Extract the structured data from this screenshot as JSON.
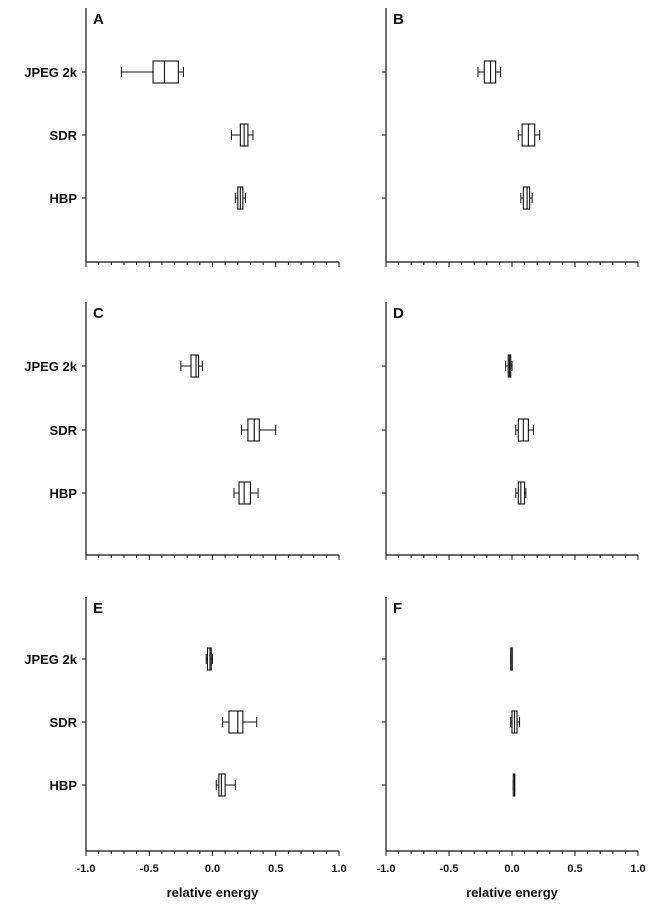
{
  "chart_data": [
    {
      "panel": "A",
      "type": "boxplot",
      "categories": [
        "JPEG 2k",
        "SDR",
        "HBP"
      ],
      "series": [
        {
          "category": "JPEG 2k",
          "whisker_low": -0.72,
          "q1": -0.47,
          "median": -0.38,
          "q3": -0.27,
          "whisker_high": -0.23
        },
        {
          "category": "SDR",
          "whisker_low": 0.15,
          "q1": 0.22,
          "median": 0.25,
          "q3": 0.28,
          "whisker_high": 0.32
        },
        {
          "category": "HBP",
          "whisker_low": 0.18,
          "q1": 0.2,
          "median": 0.22,
          "q3": 0.24,
          "whisker_high": 0.26
        }
      ],
      "xlim": [
        -1.0,
        1.0
      ]
    },
    {
      "panel": "B",
      "type": "boxplot",
      "categories": [
        "JPEG 2k",
        "SDR",
        "HBP"
      ],
      "series": [
        {
          "category": "JPEG 2k",
          "whisker_low": -0.27,
          "q1": -0.22,
          "median": -0.17,
          "q3": -0.13,
          "whisker_high": -0.09
        },
        {
          "category": "SDR",
          "whisker_low": 0.05,
          "q1": 0.08,
          "median": 0.13,
          "q3": 0.18,
          "whisker_high": 0.22
        },
        {
          "category": "HBP",
          "whisker_low": 0.07,
          "q1": 0.09,
          "median": 0.12,
          "q3": 0.14,
          "whisker_high": 0.16
        }
      ],
      "xlim": [
        -1.0,
        1.0
      ]
    },
    {
      "panel": "C",
      "type": "boxplot",
      "categories": [
        "JPEG 2k",
        "SDR",
        "HBP"
      ],
      "series": [
        {
          "category": "JPEG 2k",
          "whisker_low": -0.25,
          "q1": -0.17,
          "median": -0.13,
          "q3": -0.11,
          "whisker_high": -0.08
        },
        {
          "category": "SDR",
          "whisker_low": 0.23,
          "q1": 0.28,
          "median": 0.33,
          "q3": 0.37,
          "whisker_high": 0.5
        },
        {
          "category": "HBP",
          "whisker_low": 0.17,
          "q1": 0.21,
          "median": 0.25,
          "q3": 0.3,
          "whisker_high": 0.36
        }
      ],
      "xlim": [
        -1.0,
        1.0
      ]
    },
    {
      "panel": "D",
      "type": "boxplot",
      "categories": [
        "JPEG 2k",
        "SDR",
        "HBP"
      ],
      "series": [
        {
          "category": "JPEG 2k",
          "whisker_low": -0.05,
          "q1": -0.03,
          "median": -0.02,
          "q3": -0.01,
          "whisker_high": 0.0
        },
        {
          "category": "SDR",
          "whisker_low": 0.03,
          "q1": 0.05,
          "median": 0.09,
          "q3": 0.13,
          "whisker_high": 0.17
        },
        {
          "category": "HBP",
          "whisker_low": 0.03,
          "q1": 0.05,
          "median": 0.07,
          "q3": 0.1,
          "whisker_high": 0.11
        }
      ],
      "xlim": [
        -1.0,
        1.0
      ]
    },
    {
      "panel": "E",
      "type": "boxplot",
      "categories": [
        "JPEG 2k",
        "SDR",
        "HBP"
      ],
      "series": [
        {
          "category": "JPEG 2k",
          "whisker_low": -0.05,
          "q1": -0.04,
          "median": -0.02,
          "q3": -0.01,
          "whisker_high": 0.0
        },
        {
          "category": "SDR",
          "whisker_low": 0.08,
          "q1": 0.13,
          "median": 0.2,
          "q3": 0.24,
          "whisker_high": 0.35
        },
        {
          "category": "HBP",
          "whisker_low": 0.03,
          "q1": 0.05,
          "median": 0.07,
          "q3": 0.1,
          "whisker_high": 0.18
        }
      ],
      "xlim": [
        -1.0,
        1.0
      ]
    },
    {
      "panel": "F",
      "type": "boxplot",
      "categories": [
        "JPEG 2k",
        "SDR",
        "HBP"
      ],
      "series": [
        {
          "category": "JPEG 2k",
          "whisker_low": -0.01,
          "q1": -0.01,
          "median": 0.0,
          "q3": 0.0,
          "whisker_high": 0.0
        },
        {
          "category": "SDR",
          "whisker_low": -0.01,
          "q1": 0.0,
          "median": 0.02,
          "q3": 0.04,
          "whisker_high": 0.06
        },
        {
          "category": "HBP",
          "whisker_low": 0.01,
          "q1": 0.01,
          "median": 0.02,
          "q3": 0.02,
          "whisker_high": 0.02
        }
      ],
      "xlim": [
        -1.0,
        1.0
      ]
    }
  ],
  "x_tick_labels": [
    "-1.0",
    "-0.5",
    "0.0",
    "0.5",
    "1.0"
  ],
  "x_tick_values": [
    -1.0,
    -0.5,
    0.0,
    0.5,
    1.0
  ],
  "xlabel": "relative energy",
  "colors": {
    "axis": "#111111",
    "box_fill": "#ffffff"
  }
}
